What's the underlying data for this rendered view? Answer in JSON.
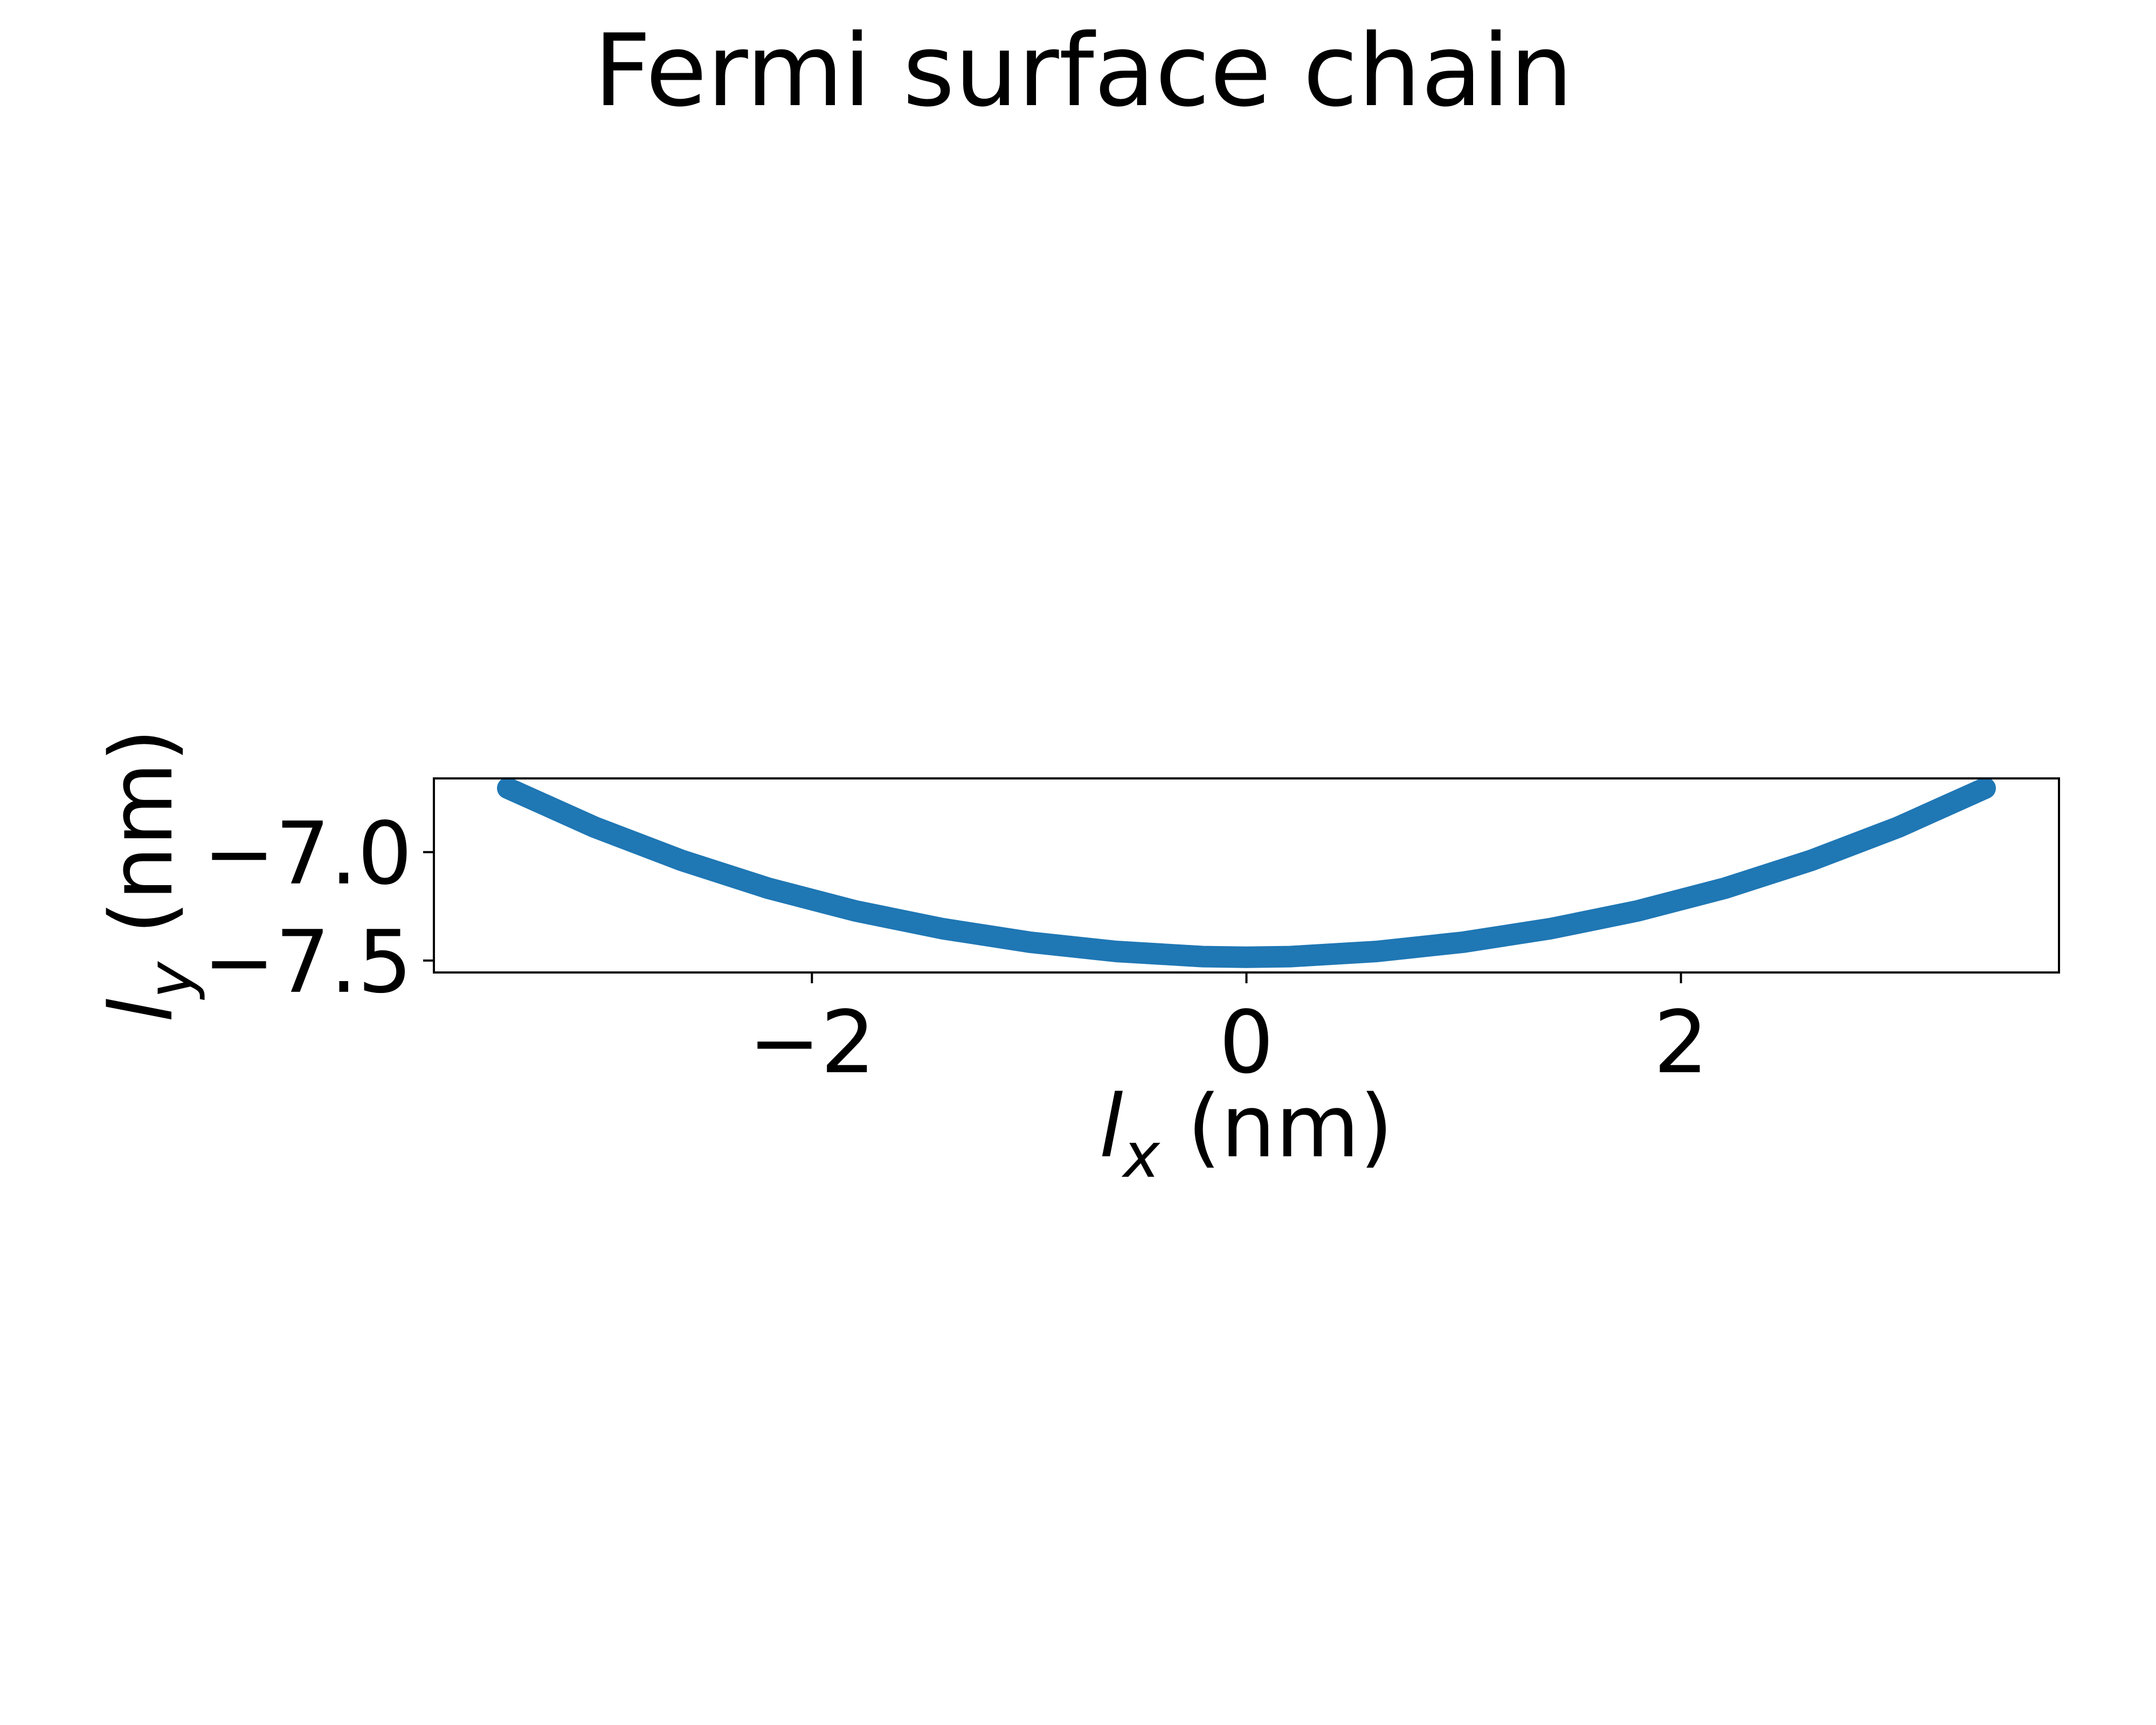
{
  "chart_data": {
    "type": "line",
    "title": "Fermi surface chain",
    "xlabel": {
      "var": "l",
      "sub": "x",
      "unit": " (nm)"
    },
    "ylabel": {
      "var": "l",
      "sub": "y",
      "unit": " (nm)"
    },
    "xlim": [
      -3.74,
      3.74
    ],
    "ylim": [
      -7.555,
      -6.66
    ],
    "xticks": [
      {
        "value": -2,
        "label": "−2"
      },
      {
        "value": 0,
        "label": "0"
      },
      {
        "value": 2,
        "label": "2"
      }
    ],
    "yticks": [
      {
        "value": -7.0,
        "label": "−7.0"
      },
      {
        "value": -7.5,
        "label": "−7.5"
      }
    ],
    "grid": false,
    "series": [
      {
        "color": "#1f77b4",
        "x": [
          -3.4,
          -3.0,
          -2.6,
          -2.2,
          -1.8,
          -1.4,
          -1.0,
          -0.6,
          -0.2,
          0.0,
          0.2,
          0.6,
          1.0,
          1.4,
          1.8,
          2.2,
          2.6,
          3.0,
          3.4
        ],
        "y": [
          -6.705,
          -6.885,
          -7.038,
          -7.167,
          -7.271,
          -7.353,
          -7.415,
          -7.458,
          -7.482,
          -7.485,
          -7.482,
          -7.458,
          -7.415,
          -7.353,
          -7.271,
          -7.167,
          -7.038,
          -6.885,
          -6.705
        ]
      }
    ]
  }
}
